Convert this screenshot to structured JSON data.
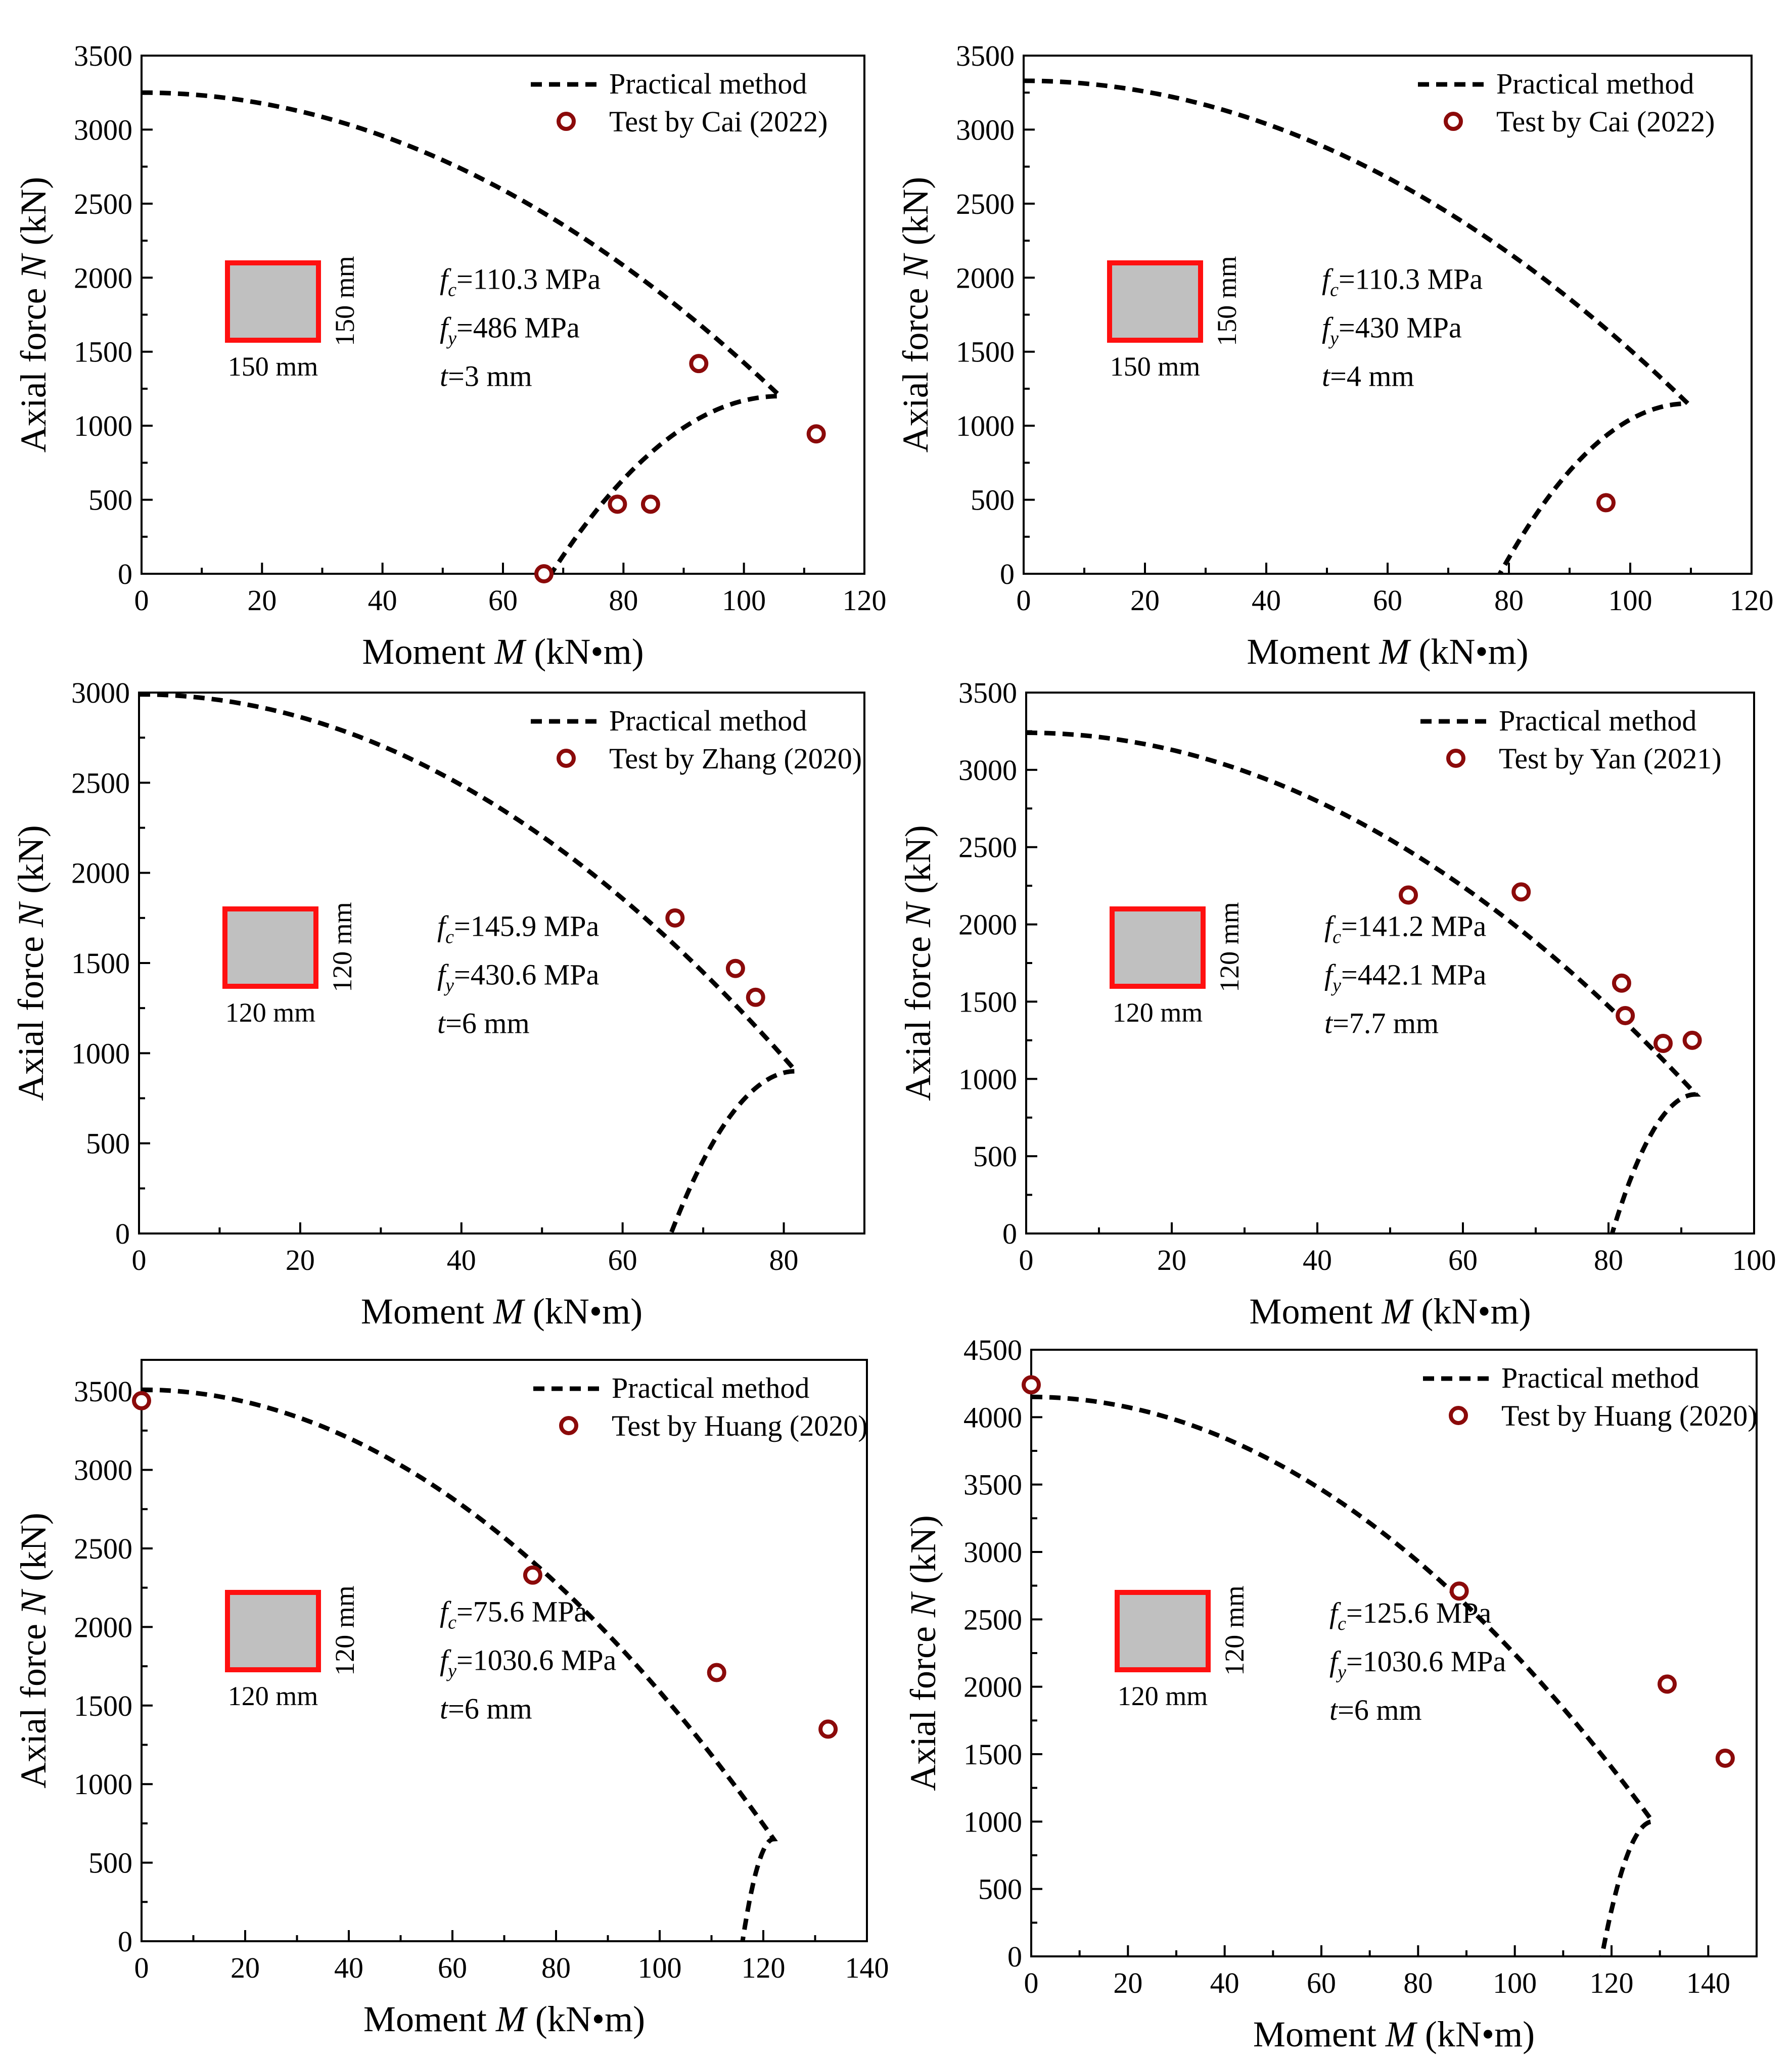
{
  "figure": {
    "x_unit_label": "Moment M (kN•m)",
    "y_unit_label": "Axial force N (kN)"
  },
  "colors": {
    "curve": "#000000",
    "marker": "#8b0a0a",
    "section_fill": "#c0c0c0",
    "section_border": "#ff1010"
  },
  "chart_data": [
    {
      "type": "line+scatter",
      "xlabel_pre": "Moment ",
      "xlabel_var": "M",
      "xlabel_post": " (kN•m)",
      "ylabel_pre": "Axial force ",
      "ylabel_var": "N",
      "ylabel_post": " (kN)",
      "xlim": [
        0,
        120
      ],
      "ylim": [
        0,
        3500
      ],
      "xticks": [
        0,
        20,
        40,
        60,
        80,
        100,
        120
      ],
      "yticks": [
        0,
        500,
        1000,
        1500,
        2000,
        2500,
        3000,
        3500
      ],
      "legend": {
        "line_label": "Practical method",
        "marker_label": "Test by Cai (2022)"
      },
      "section": {
        "width_label": "150 mm",
        "height_label": "150 mm"
      },
      "params": {
        "fc": "=110.3 MPa",
        "fy": "=486 MPa",
        "t": "=3 mm"
      },
      "curve": {
        "m_at_zero": 68,
        "n_max": 3250,
        "m_max": 106,
        "n_at_mmax": 1200
      },
      "points": [
        [
          66.8,
          0
        ],
        [
          79,
          470
        ],
        [
          84.5,
          470
        ],
        [
          92.5,
          1420
        ],
        [
          112,
          945
        ]
      ]
    },
    {
      "type": "line+scatter",
      "xlabel_pre": "Moment ",
      "xlabel_var": "M",
      "xlabel_post": " (kN•m)",
      "ylabel_pre": "Axial force ",
      "ylabel_var": "N",
      "ylabel_post": " (kN)",
      "xlim": [
        0,
        120
      ],
      "ylim": [
        0,
        3500
      ],
      "xticks": [
        0,
        20,
        40,
        60,
        80,
        100,
        120
      ],
      "yticks": [
        0,
        500,
        1000,
        1500,
        2000,
        2500,
        3000,
        3500
      ],
      "legend": {
        "line_label": "Practical method",
        "marker_label": "Test by Cai (2022)"
      },
      "section": {
        "width_label": "150 mm",
        "height_label": "150 mm"
      },
      "params": {
        "fc": "=110.3 MPa",
        "fy": "=430 MPa",
        "t": "=4 mm"
      },
      "curve": {
        "m_at_zero": 78.5,
        "n_max": 3330,
        "m_max": 109.5,
        "n_at_mmax": 1150
      },
      "points": [
        [
          96,
          480
        ]
      ]
    },
    {
      "type": "line+scatter",
      "xlabel_pre": "Moment ",
      "xlabel_var": "M",
      "xlabel_post": " (kN•m)",
      "ylabel_pre": "Axial force ",
      "ylabel_var": "N",
      "ylabel_post": " (kN)",
      "xlim": [
        0,
        90
      ],
      "ylim": [
        0,
        3000
      ],
      "xticks": [
        0,
        20,
        40,
        60,
        80
      ],
      "yticks": [
        0,
        500,
        1000,
        1500,
        2000,
        2500,
        3000
      ],
      "legend": {
        "line_label": "Practical method",
        "marker_label": "Test by  Zhang (2020)"
      },
      "section": {
        "width_label": "120 mm",
        "height_label": "120 mm"
      },
      "params": {
        "fc": "=145.9 MPa",
        "fy": "=430.6 MPa",
        "t": "=6 mm"
      },
      "curve": {
        "m_at_zero": 66,
        "n_max": 2990,
        "m_max": 81.5,
        "n_at_mmax": 900
      },
      "points": [
        [
          66.5,
          1750
        ],
        [
          74,
          1470
        ],
        [
          76.5,
          1310
        ]
      ]
    },
    {
      "type": "line+scatter",
      "xlabel_pre": "Moment ",
      "xlabel_var": "M",
      "xlabel_post": " (kN•m)",
      "ylabel_pre": "Axial force ",
      "ylabel_var": "N",
      "ylabel_post": " (kN)",
      "xlim": [
        0,
        100
      ],
      "ylim": [
        0,
        3500
      ],
      "xticks": [
        0,
        20,
        40,
        60,
        80,
        100
      ],
      "yticks": [
        0,
        500,
        1000,
        1500,
        2000,
        2500,
        3000,
        3500
      ],
      "legend": {
        "line_label": "Practical method",
        "marker_label": "Test by Yan (2021)"
      },
      "section": {
        "width_label": "120 mm",
        "height_label": "120 mm"
      },
      "params": {
        "fc": "=141.2 MPa",
        "fy": "=442.1 MPa",
        "t": "=7.7 mm"
      },
      "curve": {
        "m_at_zero": 80.5,
        "n_max": 3240,
        "m_max": 92,
        "n_at_mmax": 900
      },
      "points": [
        [
          52.5,
          2190
        ],
        [
          68,
          2210
        ],
        [
          81.8,
          1620
        ],
        [
          82.3,
          1410
        ],
        [
          87.5,
          1230
        ],
        [
          91.5,
          1250
        ]
      ]
    },
    {
      "type": "line+scatter",
      "xlabel_pre": "Moment ",
      "xlabel_var": "M",
      "xlabel_post": " (kN•m)",
      "ylabel_pre": "Axial force ",
      "ylabel_var": "N",
      "ylabel_post": " (kN)",
      "xlim": [
        0,
        140
      ],
      "ylim": [
        0,
        3700
      ],
      "xticks": [
        0,
        20,
        40,
        60,
        80,
        100,
        120,
        140
      ],
      "yticks": [
        0,
        500,
        1000,
        1500,
        2000,
        2500,
        3000,
        3500
      ],
      "legend": {
        "line_label": "Practical method",
        "marker_label": "Test by Huang (2020)"
      },
      "section": {
        "width_label": "120 mm",
        "height_label": "120 mm"
      },
      "params": {
        "fc": "=75.6 MPa",
        "fy": "=1030.6 MPa",
        "t": "=6 mm"
      },
      "curve": {
        "m_at_zero": 116,
        "n_max": 3510,
        "m_max": 122,
        "n_at_mmax": 650
      },
      "points": [
        [
          0,
          3440
        ],
        [
          75.5,
          2330
        ],
        [
          111,
          1710
        ],
        [
          132.5,
          1350
        ]
      ]
    },
    {
      "type": "line+scatter",
      "xlabel_pre": "Moment ",
      "xlabel_var": "M",
      "xlabel_post": " (kN•m)",
      "ylabel_pre": "Axial force ",
      "ylabel_var": "N",
      "ylabel_post": " (kN)",
      "xlim": [
        0,
        150
      ],
      "ylim": [
        0,
        4500
      ],
      "xticks": [
        0,
        20,
        40,
        60,
        80,
        100,
        120,
        140
      ],
      "yticks": [
        0,
        500,
        1000,
        1500,
        2000,
        2500,
        3000,
        3500,
        4000,
        4500
      ],
      "legend": {
        "line_label": "Practical method",
        "marker_label": "Test by Huang (2020)"
      },
      "section": {
        "width_label": "120 mm",
        "height_label": "120 mm"
      },
      "params": {
        "fc": "=125.6 MPa",
        "fy": "=1030.6 MPa",
        "t": "=6 mm"
      },
      "curve": {
        "m_at_zero": 118,
        "n_max": 4150,
        "m_max": 128.5,
        "n_at_mmax": 1000
      },
      "points": [
        [
          0,
          4240
        ],
        [
          88.5,
          2710
        ],
        [
          131.5,
          2020
        ],
        [
          143.5,
          1470
        ]
      ]
    }
  ]
}
